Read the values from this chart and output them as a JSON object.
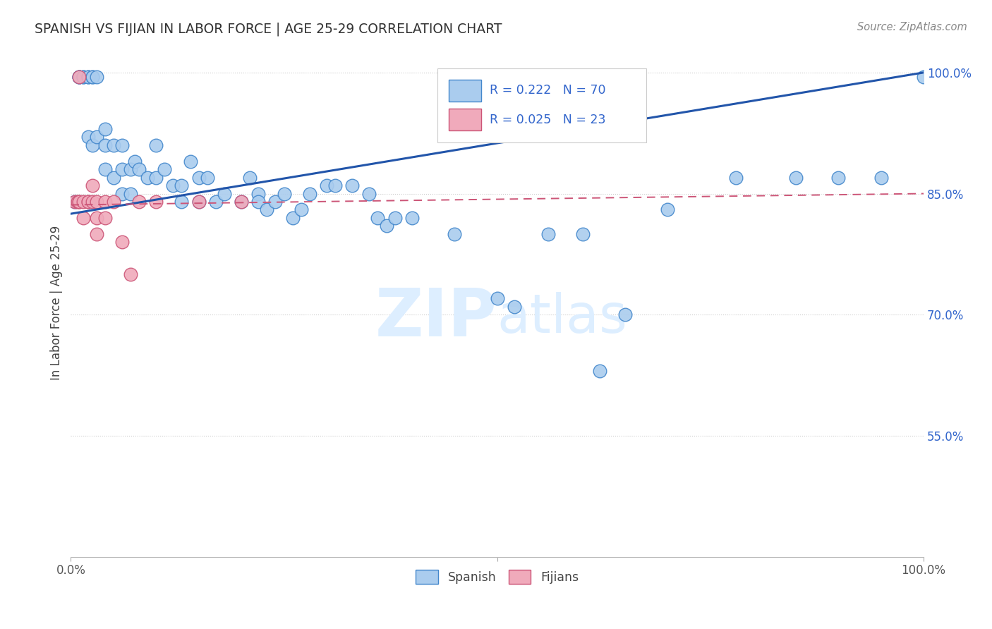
{
  "title": "SPANISH VS FIJIAN IN LABOR FORCE | AGE 25-29 CORRELATION CHART",
  "source": "Source: ZipAtlas.com",
  "ylabel": "In Labor Force | Age 25-29",
  "xlim": [
    0.0,
    1.0
  ],
  "ylim": [
    0.4,
    1.03
  ],
  "ytick_positions": [
    0.55,
    0.7,
    0.85,
    1.0
  ],
  "ytick_labels": [
    "55.0%",
    "70.0%",
    "85.0%",
    "100.0%"
  ],
  "spanish_color": "#aaccee",
  "fijian_color": "#f0aabb",
  "spanish_edge": "#4488cc",
  "fijian_edge": "#cc5577",
  "trend_blue": "#2255aa",
  "trend_pink": "#cc5577",
  "R_spanish": 0.222,
  "N_spanish": 70,
  "R_fijian": 0.025,
  "N_fijian": 23,
  "legend_color": "#3366cc",
  "spanish_x": [
    0.005,
    0.01,
    0.01,
    0.01,
    0.015,
    0.015,
    0.02,
    0.02,
    0.02,
    0.025,
    0.025,
    0.025,
    0.03,
    0.03,
    0.04,
    0.04,
    0.04,
    0.05,
    0.05,
    0.06,
    0.06,
    0.06,
    0.07,
    0.07,
    0.075,
    0.08,
    0.09,
    0.1,
    0.1,
    0.11,
    0.12,
    0.13,
    0.13,
    0.14,
    0.15,
    0.15,
    0.16,
    0.17,
    0.18,
    0.2,
    0.21,
    0.22,
    0.22,
    0.23,
    0.24,
    0.25,
    0.26,
    0.27,
    0.28,
    0.3,
    0.31,
    0.33,
    0.35,
    0.36,
    0.37,
    0.38,
    0.4,
    0.45,
    0.5,
    0.52,
    0.56,
    0.6,
    0.62,
    0.65,
    0.7,
    0.78,
    0.85,
    0.9,
    0.95,
    1.0
  ],
  "spanish_y": [
    0.84,
    0.995,
    0.995,
    0.995,
    0.995,
    0.995,
    0.995,
    0.995,
    0.92,
    0.995,
    0.995,
    0.91,
    0.995,
    0.92,
    0.93,
    0.91,
    0.88,
    0.91,
    0.87,
    0.91,
    0.88,
    0.85,
    0.88,
    0.85,
    0.89,
    0.88,
    0.87,
    0.87,
    0.91,
    0.88,
    0.86,
    0.86,
    0.84,
    0.89,
    0.87,
    0.84,
    0.87,
    0.84,
    0.85,
    0.84,
    0.87,
    0.85,
    0.84,
    0.83,
    0.84,
    0.85,
    0.82,
    0.83,
    0.85,
    0.86,
    0.86,
    0.86,
    0.85,
    0.82,
    0.81,
    0.82,
    0.82,
    0.8,
    0.72,
    0.71,
    0.8,
    0.8,
    0.63,
    0.7,
    0.83,
    0.87,
    0.87,
    0.87,
    0.87,
    0.995
  ],
  "fijian_x": [
    0.005,
    0.008,
    0.01,
    0.01,
    0.01,
    0.015,
    0.015,
    0.02,
    0.02,
    0.025,
    0.025,
    0.03,
    0.03,
    0.03,
    0.04,
    0.04,
    0.05,
    0.06,
    0.07,
    0.08,
    0.1,
    0.15,
    0.2
  ],
  "fijian_y": [
    0.84,
    0.84,
    0.995,
    0.84,
    0.84,
    0.84,
    0.82,
    0.84,
    0.84,
    0.86,
    0.84,
    0.82,
    0.84,
    0.8,
    0.84,
    0.82,
    0.84,
    0.79,
    0.75,
    0.84,
    0.84,
    0.84,
    0.84
  ],
  "grid_color": "#cccccc",
  "background_color": "#ffffff",
  "watermark_zip": "ZIP",
  "watermark_atlas": "atlas",
  "watermark_color": "#ddeeff"
}
